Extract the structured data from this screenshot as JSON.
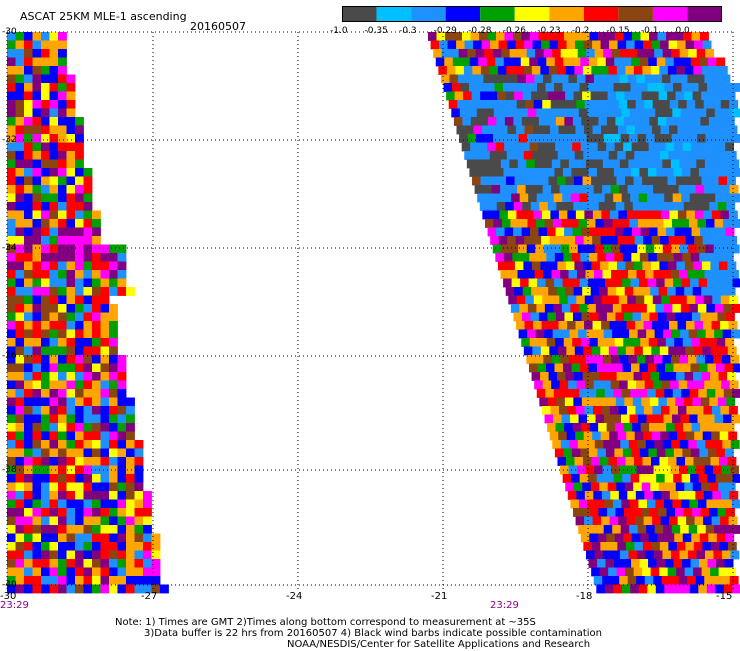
{
  "header": {
    "title": "ASCAT 25KM MLE-1 ascending",
    "date": "20160507"
  },
  "legend": {
    "labels": [
      "-1.0",
      "-0.35",
      "-0.3",
      "-0.29",
      "-0.28",
      "-0.26",
      "-0.23",
      "-0.2",
      "-0.15",
      "-0.1",
      "0.0"
    ],
    "colors": [
      "#4a4a4a",
      "#00bfff",
      "#1e90ff",
      "#0000ff",
      "#00a000",
      "#ffff00",
      "#ffa500",
      "#ff0000",
      "#8b4513",
      "#ff00ff",
      "#800080"
    ]
  },
  "map": {
    "background": "#ffffff",
    "grid_style": "dotted",
    "lat_labels": [
      "-30",
      "-32",
      "-34",
      "-36",
      "-38",
      "-40"
    ],
    "lon_labels": [
      "-30",
      "-27",
      "-24",
      "-21",
      "-18",
      "-15"
    ],
    "pass_times": [
      "23:29",
      "23:29"
    ],
    "time_color": "#8b008b"
  },
  "notes": {
    "line1": "Note: 1) Times are GMT 2)Times along bottom correspond to measurement at ~35S",
    "line2": "3)Data buffer is 22 hrs from 20160507 4) Black wind barbs indicate possible contamination",
    "line3": "NOAA/NESDIS/Center for Satellite Applications and Research"
  }
}
